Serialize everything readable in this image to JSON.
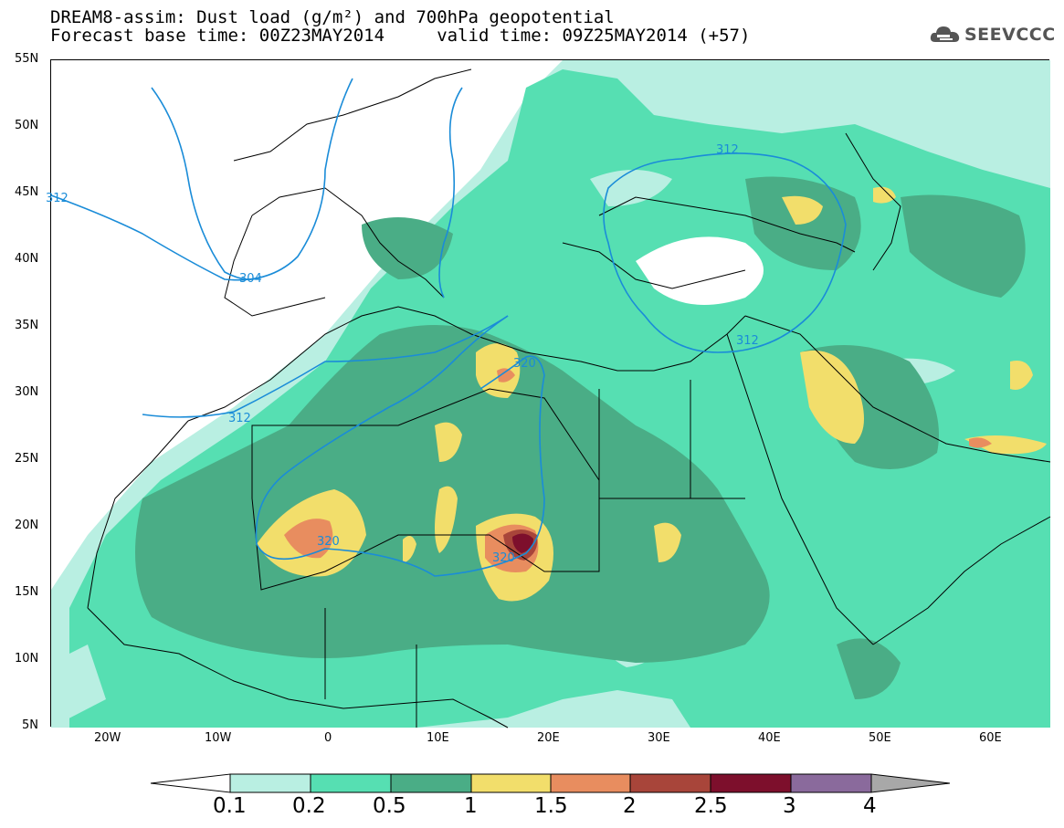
{
  "title": {
    "line1": "DREAM8-assim: Dust load (g/m²) and 700hPa geopotential",
    "line2": "Forecast base time: 00Z23MAY2014     valid time: 09Z25MAY2014 (+57)"
  },
  "logo": {
    "text": "SEEVCCC",
    "icon": "cloud-logo-icon"
  },
  "axes": {
    "lat_labels": [
      "55N",
      "50N",
      "45N",
      "40N",
      "35N",
      "30N",
      "25N",
      "20N",
      "15N",
      "10N",
      "5N"
    ],
    "lon_labels": [
      "20W",
      "10W",
      "0",
      "10E",
      "20E",
      "30E",
      "40E",
      "50E",
      "60E"
    ]
  },
  "contour_labels": [
    "312",
    "304",
    "312",
    "320",
    "320",
    "320",
    "312",
    "312"
  ],
  "colorbar": {
    "levels": [
      "0.1",
      "0.2",
      "0.5",
      "1",
      "1.5",
      "2",
      "2.5",
      "3",
      "4"
    ],
    "colors": [
      "#b9efe2",
      "#56dfb2",
      "#4aad86",
      "#f2de6b",
      "#e88d5f",
      "#a8453a",
      "#7d0f2c",
      "#8a6a9c"
    ],
    "under_color": "#ffffff",
    "over_color": "#a8a8a8"
  },
  "colors": {
    "contour": "#1a8cd8",
    "dust_0_1": "#b9efe2",
    "dust_0_2": "#56dfb2",
    "dust_0_5": "#4aad86",
    "dust_1": "#f2de6b",
    "dust_1_5": "#e88d5f",
    "dust_2": "#a8453a",
    "dust_2_5": "#7d0f2c"
  }
}
